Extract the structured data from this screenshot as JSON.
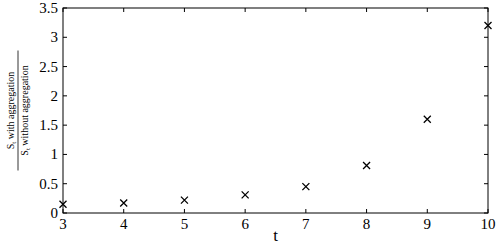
{
  "chart_data": {
    "type": "scatter",
    "xlabel": "t",
    "ylabel": {
      "numerator": "St with aggregation",
      "denominator": "St without aggregation"
    },
    "x": [
      3,
      4,
      5,
      6,
      7,
      8,
      9,
      10
    ],
    "values": [
      0.15,
      0.17,
      0.22,
      0.31,
      0.45,
      0.81,
      1.6,
      3.2
    ],
    "color": "#000000",
    "marker": "x",
    "xlim": [
      3,
      10
    ],
    "xticks": [
      3,
      4,
      5,
      6,
      7,
      8,
      9,
      10
    ],
    "ylim": [
      0,
      3.5
    ],
    "yticks": [
      0,
      0.5,
      1,
      1.5,
      2,
      2.5,
      3,
      3.5
    ],
    "grid": false
  }
}
